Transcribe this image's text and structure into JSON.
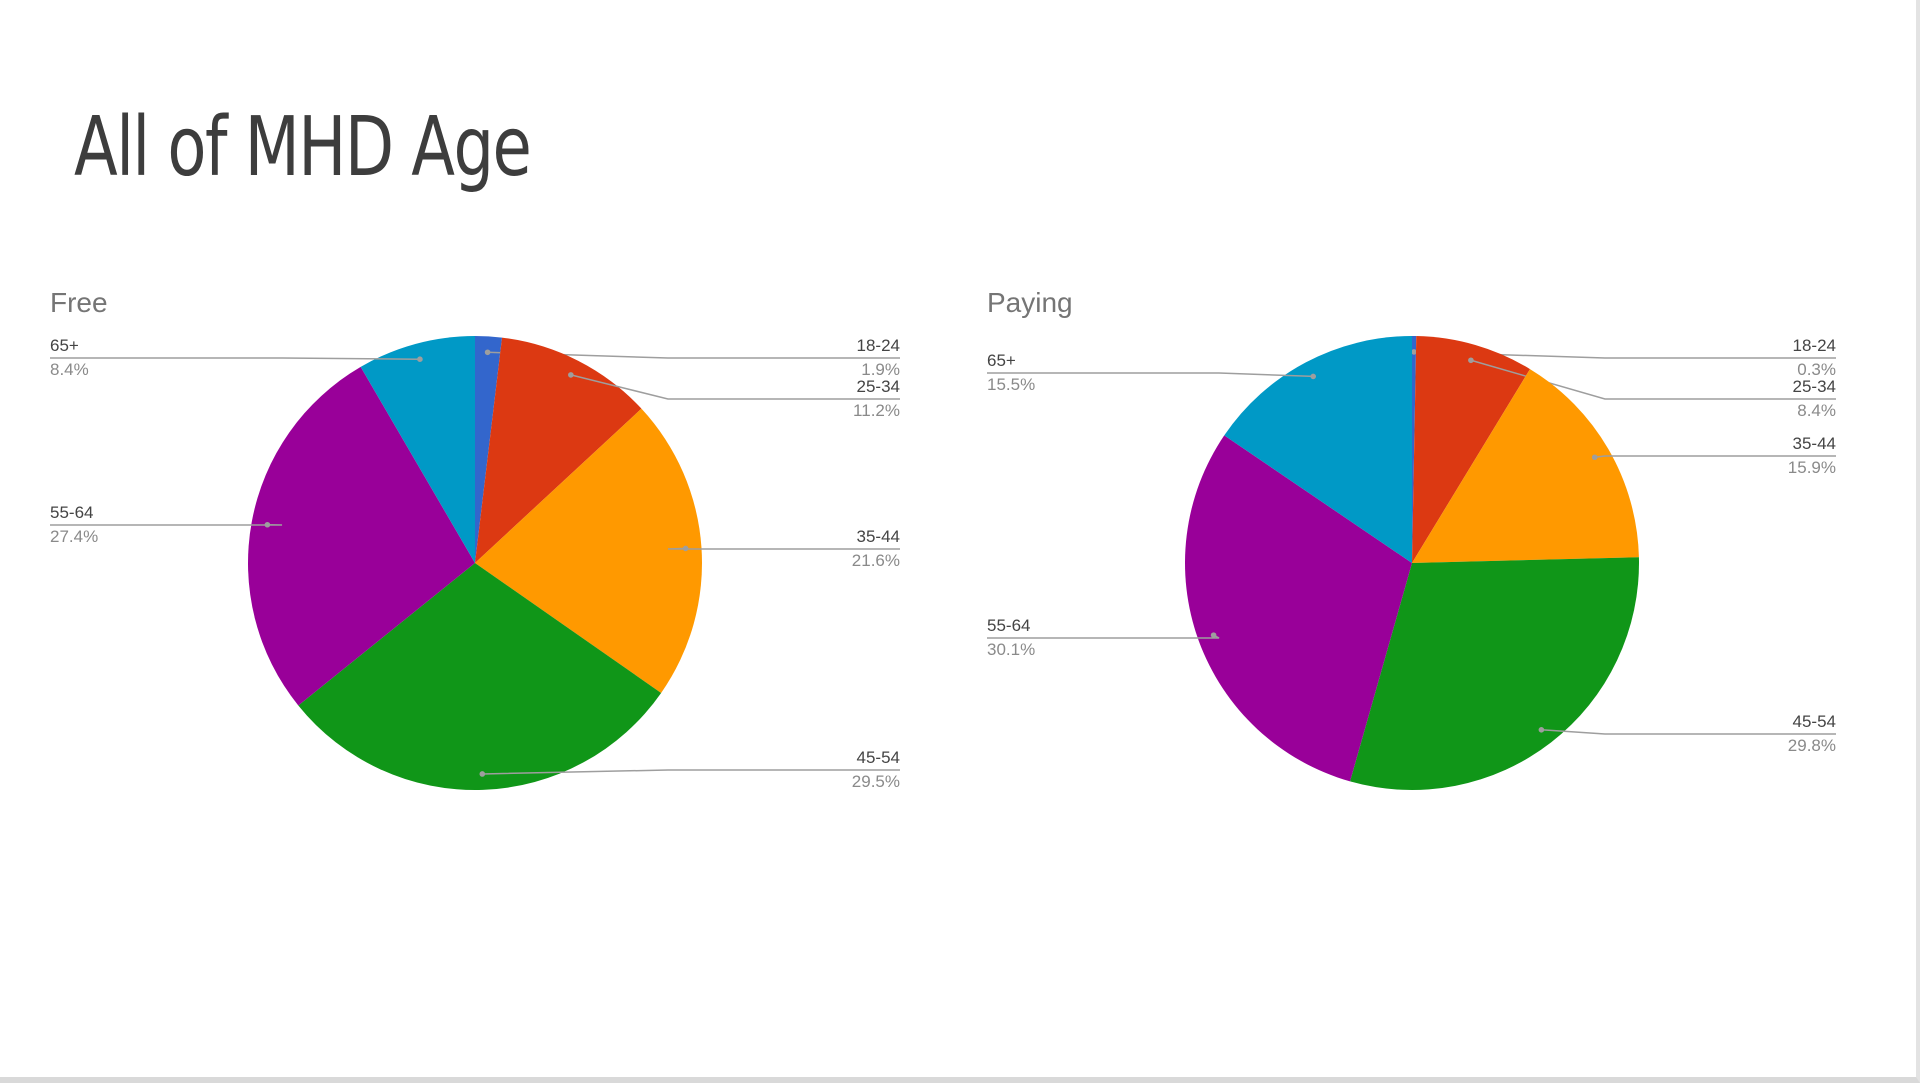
{
  "page": {
    "title": "All of MHD Age"
  },
  "colors": {
    "18-24": "#3366cc",
    "25-34": "#dc3912",
    "35-44": "#ff9900",
    "45-54": "#109618",
    "55-64": "#990099",
    "65+": "#0099c6"
  },
  "chart_data": [
    {
      "type": "pie",
      "title": "Free",
      "categories": [
        "18-24",
        "25-34",
        "35-44",
        "45-54",
        "55-64",
        "65+"
      ],
      "values": [
        1.9,
        11.2,
        21.6,
        29.5,
        27.4,
        8.4
      ],
      "labels": [
        "1.9%",
        "11.2%",
        "21.6%",
        "29.5%",
        "27.4%",
        "8.4%"
      ],
      "legend": "none (leader-line labels)"
    },
    {
      "type": "pie",
      "title": "Paying",
      "categories": [
        "18-24",
        "25-34",
        "35-44",
        "45-54",
        "55-64",
        "65+"
      ],
      "values": [
        0.3,
        8.4,
        15.9,
        29.8,
        30.1,
        15.5
      ],
      "labels": [
        "0.3%",
        "8.4%",
        "15.9%",
        "29.8%",
        "30.1%",
        "15.5%"
      ],
      "legend": "none (leader-line labels)"
    }
  ]
}
